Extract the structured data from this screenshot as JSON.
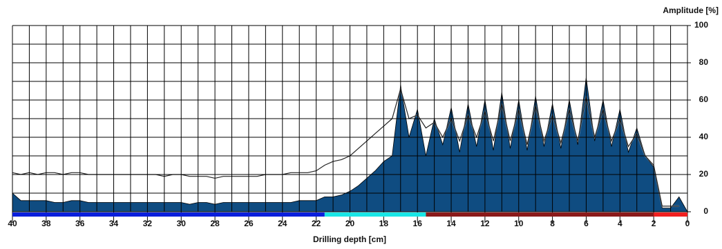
{
  "chart_data": {
    "type": "area",
    "x_label": "Drilling depth [cm]",
    "y_label": "Amplitude [%]",
    "x": [
      40,
      39.5,
      39,
      38.5,
      38,
      37.5,
      37,
      36.5,
      36,
      35.5,
      35,
      34.5,
      34,
      33.5,
      33,
      32.5,
      32,
      31.5,
      31,
      30.5,
      30,
      29.5,
      29,
      28.5,
      28,
      27.5,
      27,
      26.5,
      26,
      25.5,
      25,
      24.5,
      24,
      23.5,
      23,
      22.5,
      22,
      21.5,
      21,
      20.5,
      20,
      19.5,
      19,
      18.5,
      18,
      17.5,
      17,
      16.5,
      16,
      15.5,
      15,
      14.5,
      14,
      13.5,
      13,
      12.5,
      12,
      11.5,
      11,
      10.5,
      10,
      9.5,
      9,
      8.5,
      8,
      7.5,
      7,
      6.5,
      6,
      5.5,
      5,
      4.5,
      4,
      3.5,
      3,
      2.5,
      2,
      1.5,
      1,
      0.5,
      0
    ],
    "series": [
      {
        "color": "#0f4c81",
        "fill": true,
        "values": [
          10,
          6,
          6,
          6,
          6,
          5,
          5,
          6,
          6,
          5,
          5,
          5,
          5,
          5,
          5,
          5,
          5,
          5,
          5,
          5,
          5,
          4,
          5,
          5,
          4,
          5,
          5,
          5,
          5,
          5,
          5,
          5,
          5,
          5,
          6,
          6,
          6,
          8,
          8,
          9,
          11,
          14,
          18,
          22,
          27,
          30,
          68,
          40,
          55,
          30,
          50,
          36,
          56,
          32,
          58,
          35,
          60,
          33,
          64,
          34,
          60,
          33,
          62,
          35,
          58,
          34,
          60,
          36,
          72,
          38,
          60,
          35,
          55,
          32,
          45,
          30,
          24,
          2,
          2,
          8,
          0
        ]
      },
      {
        "color": "#222222",
        "fill": false,
        "values": [
          21,
          20,
          21,
          20,
          21,
          21,
          20,
          21,
          21,
          20,
          20,
          20,
          20,
          20,
          20,
          20,
          20,
          20,
          19,
          20,
          20,
          19,
          19,
          19,
          18,
          19,
          19,
          19,
          19,
          19,
          20,
          20,
          20,
          21,
          21,
          21,
          22,
          25,
          27,
          28,
          30,
          34,
          38,
          42,
          46,
          50,
          66,
          50,
          52,
          45,
          48,
          40,
          50,
          38,
          52,
          40,
          54,
          38,
          58,
          38,
          55,
          36,
          57,
          38,
          52,
          37,
          55,
          38,
          62,
          40,
          55,
          38,
          50,
          35,
          42,
          30,
          25,
          3,
          3,
          3,
          null
        ]
      }
    ],
    "segments": [
      {
        "start": 40,
        "end": 21.5,
        "color": "#0a1fdc"
      },
      {
        "start": 21.5,
        "end": 15.5,
        "color": "#19e6e6"
      },
      {
        "start": 15.5,
        "end": 2,
        "color": "#8b1a1a"
      },
      {
        "start": 2,
        "end": 0,
        "color": "#f02020"
      }
    ],
    "xlim": [
      40,
      0
    ],
    "ylim": [
      0,
      100
    ],
    "xticks": [
      40,
      38,
      36,
      34,
      32,
      30,
      28,
      26,
      24,
      22,
      20,
      18,
      16,
      14,
      12,
      10,
      8,
      6,
      4,
      2,
      0
    ],
    "yticks": [
      0,
      20,
      40,
      60,
      80,
      100
    ],
    "xgrid": [
      40,
      39,
      38,
      37,
      36,
      35,
      34,
      33,
      32,
      31,
      30,
      29,
      28,
      27,
      26,
      25,
      24,
      23,
      22,
      21,
      20,
      19,
      18,
      17,
      16,
      15,
      14,
      13,
      12,
      11,
      10,
      9,
      8,
      7,
      6,
      5,
      4,
      3,
      2,
      1,
      0
    ],
    "ygrid": [
      0,
      10,
      20,
      30,
      40,
      50,
      60,
      70,
      80,
      90,
      100
    ]
  }
}
